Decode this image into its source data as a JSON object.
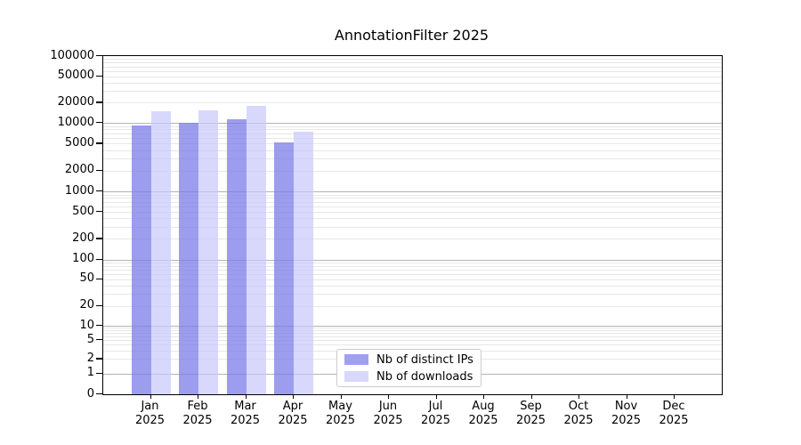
{
  "title": "AnnotationFilter 2025",
  "legend": {
    "items": [
      {
        "label": "Nb of distinct IPs",
        "swatch": "#a0a0f0"
      },
      {
        "label": "Nb of downloads",
        "swatch": "#d8d8fa"
      }
    ]
  },
  "chart_data": {
    "type": "bar",
    "title": "AnnotationFilter 2025",
    "categories": [
      "Jan",
      "Feb",
      "Mar",
      "Apr",
      "May",
      "Jun",
      "Jul",
      "Aug",
      "Sep",
      "Oct",
      "Nov",
      "Dec"
    ],
    "year": "2025",
    "series": [
      {
        "name": "Nb of distinct IPs",
        "fill": "rgba(124,124,234,0.75)",
        "values": [
          9200,
          10000,
          11300,
          5200,
          null,
          null,
          null,
          null,
          null,
          null,
          null,
          null
        ]
      },
      {
        "name": "Nb of downloads",
        "fill": "rgba(200,200,252,0.70)",
        "values": [
          15000,
          15600,
          18000,
          7400,
          null,
          null,
          null,
          null,
          null,
          null,
          null,
          null
        ]
      }
    ],
    "yscale": "symlog",
    "ylim": [
      0,
      100000
    ],
    "yticks": [
      0,
      1,
      2,
      5,
      10,
      20,
      50,
      100,
      200,
      500,
      1000,
      2000,
      5000,
      10000,
      20000,
      50000,
      100000
    ],
    "grid": "both",
    "grid_major_color": "#b4b4b4",
    "grid_minor_color": "#e7e7e7",
    "legend_position": "lower center"
  }
}
